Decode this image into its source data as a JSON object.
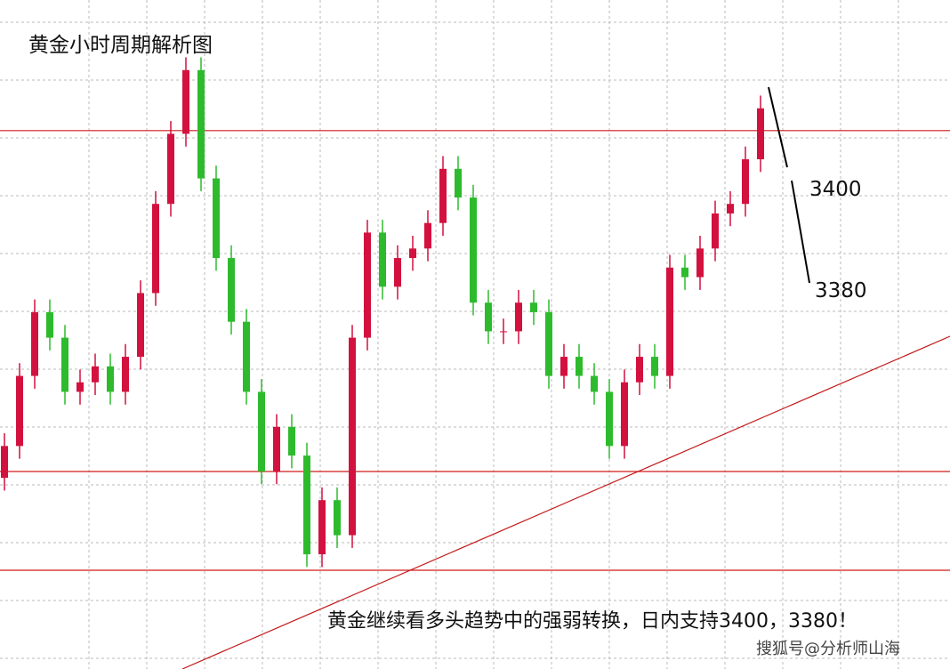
{
  "chart_data": {
    "type": "candlestick",
    "title": "黄金小时周期解析图",
    "annotations": [
      "3400",
      "3380"
    ],
    "caption": "黄金继续看多头趋势中的强弱转换，日内支持3400，3380！",
    "watermark": "搜狐号@分析师山海",
    "ylim": [
      3250,
      3460
    ],
    "up_color": "#d3113f",
    "down_color": "#2dbb2d",
    "level_color": "#d11a1a",
    "grid": true,
    "levels": [
      3419,
      3312,
      3281
    ],
    "open": [
      3310,
      3320,
      3342,
      3362,
      3354,
      3337,
      3340,
      3345,
      3337,
      3348,
      3368,
      3396,
      3418,
      3438,
      3404,
      3379,
      3359,
      3337,
      3312,
      3326,
      3317,
      3286,
      3303,
      3292,
      3354,
      3387,
      3370,
      3379,
      3382,
      3390,
      3407,
      3398,
      3365,
      3356,
      3356,
      3365,
      3362,
      3342,
      3348,
      3342,
      3337,
      3320,
      3340,
      3348,
      3342,
      3376,
      3373,
      3382,
      3393,
      3396,
      3410
    ],
    "high": [
      3324,
      3346,
      3366,
      3366,
      3358,
      3344,
      3349,
      3349,
      3352,
      3372,
      3400,
      3422,
      3442,
      3442,
      3408,
      3383,
      3363,
      3341,
      3330,
      3330,
      3321,
      3307,
      3307,
      3358,
      3391,
      3391,
      3383,
      3386,
      3394,
      3411,
      3411,
      3402,
      3369,
      3360,
      3369,
      3369,
      3366,
      3352,
      3352,
      3346,
      3341,
      3344,
      3352,
      3352,
      3380,
      3380,
      3386,
      3397,
      3400,
      3414,
      3430
    ],
    "low": [
      3306,
      3316,
      3338,
      3350,
      3333,
      3333,
      3336,
      3333,
      3333,
      3344,
      3364,
      3392,
      3414,
      3400,
      3375,
      3355,
      3333,
      3308,
      3308,
      3313,
      3282,
      3282,
      3288,
      3288,
      3350,
      3366,
      3366,
      3375,
      3378,
      3386,
      3394,
      3361,
      3352,
      3352,
      3352,
      3358,
      3338,
      3338,
      3338,
      3333,
      3316,
      3316,
      3336,
      3338,
      3338,
      3369,
      3369,
      3378,
      3389,
      3392,
      3406
    ],
    "close": [
      3320,
      3342,
      3362,
      3354,
      3337,
      3340,
      3345,
      3337,
      3348,
      3368,
      3396,
      3418,
      3438,
      3404,
      3379,
      3359,
      3337,
      3312,
      3326,
      3317,
      3286,
      3303,
      3292,
      3354,
      3387,
      3370,
      3379,
      3382,
      3390,
      3407,
      3398,
      3365,
      3356,
      3356,
      3365,
      3362,
      3342,
      3348,
      3342,
      3337,
      3320,
      3340,
      3348,
      3342,
      3376,
      3373,
      3382,
      3393,
      3396,
      3410,
      3426
    ]
  }
}
